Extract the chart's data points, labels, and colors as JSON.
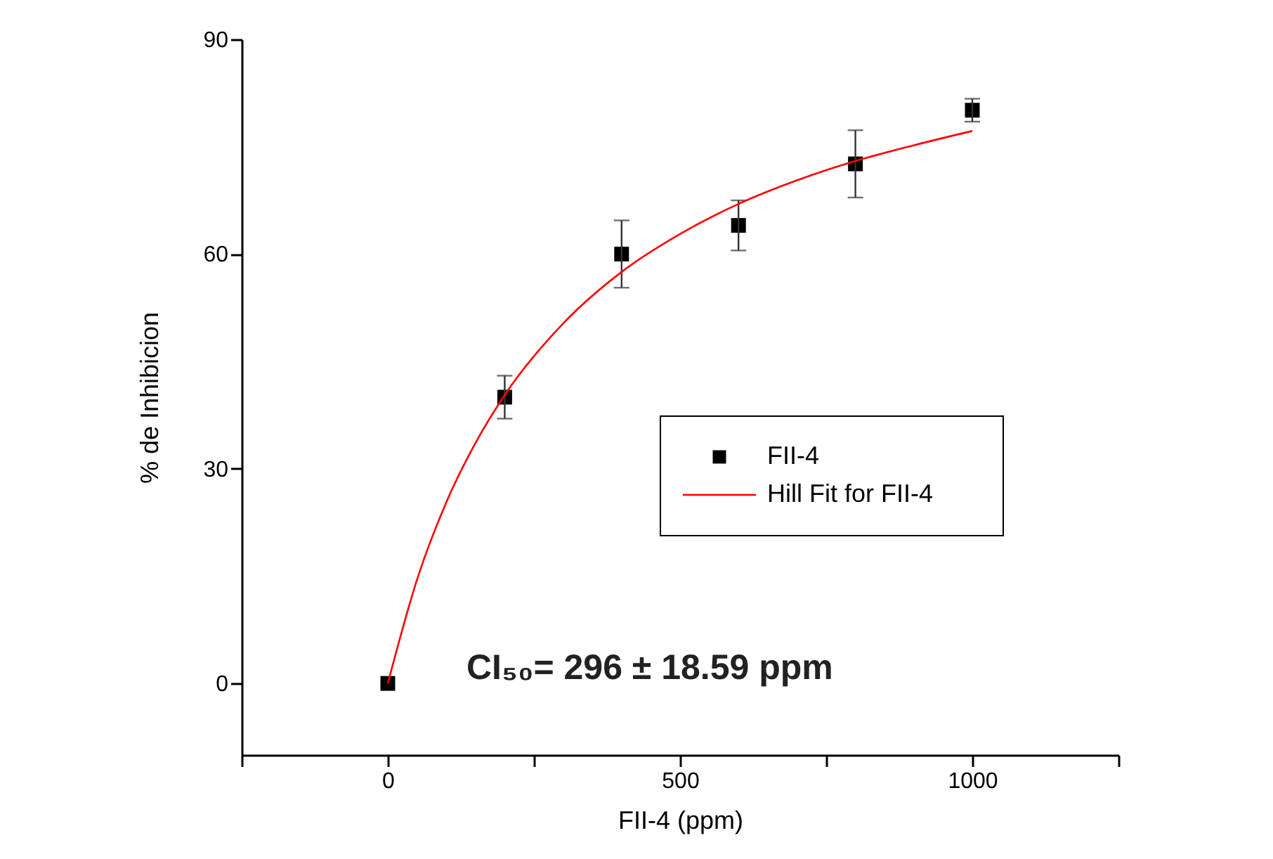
{
  "chart_data": {
    "type": "scatter",
    "xlabel": "FII-4 (ppm)",
    "ylabel": "% de Inhibicion",
    "xlim": [
      -250,
      1250
    ],
    "xticks": [
      {
        "value": -250,
        "label": null
      },
      0,
      {
        "value": 250,
        "label": null
      },
      500,
      {
        "value": 750,
        "label": null
      },
      1000,
      {
        "value": 1250,
        "label": null
      }
    ],
    "ylim": [
      -10,
      90
    ],
    "yticks": [
      0,
      30,
      60,
      90
    ],
    "grid": false,
    "legend": "right",
    "annotations": [
      "CI₅₀= 296 ± 18.59 ppm"
    ],
    "series": [
      {
        "name": "FII-4",
        "type": "scatter",
        "marker": "square",
        "color": "#000000",
        "x": [
          0,
          200,
          400,
          600,
          800,
          1000
        ],
        "values": [
          0,
          40,
          60,
          64,
          72.6,
          80.1
        ],
        "errors": [
          null,
          3,
          4.7,
          3.5,
          4.7,
          1.6
        ]
      },
      {
        "name": "Hill Fit for FII-4",
        "type": "line",
        "line_style": "solid",
        "color": "#ff0000",
        "x": [
          0,
          50,
          100,
          150,
          200,
          300,
          400,
          500,
          600,
          700,
          800,
          900,
          1000
        ],
        "values": [
          0,
          14.5,
          25.3,
          33.6,
          40.3,
          50.3,
          57.5,
          62.8,
          67,
          70.3,
          73,
          75.2,
          77.2
        ]
      }
    ]
  }
}
